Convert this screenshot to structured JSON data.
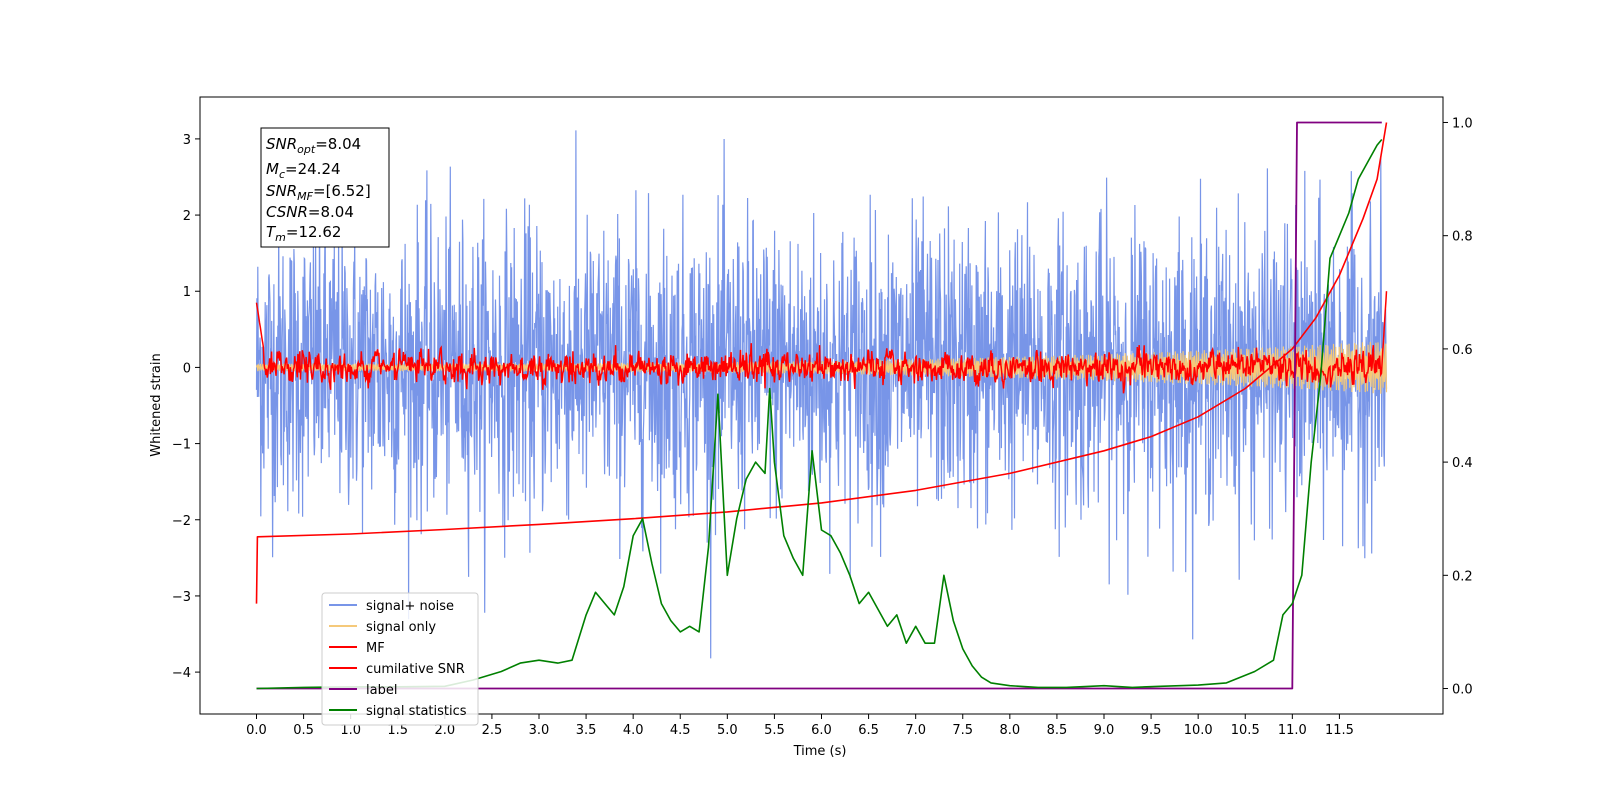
{
  "chart_data": {
    "type": "line",
    "xlabel": "Time (s)",
    "ylabel": "Whitened strain",
    "xlim": [
      -0.6,
      12.6
    ],
    "ylim": [
      -4.55,
      3.55
    ],
    "y2lim": [
      -0.045,
      1.045
    ],
    "grid": false,
    "legend_position": "lower-left",
    "x_ticks": [
      "0.0",
      "0.5",
      "1.0",
      "1.5",
      "2.0",
      "2.5",
      "3.0",
      "3.5",
      "4.0",
      "4.5",
      "5.0",
      "5.5",
      "6.0",
      "6.5",
      "7.0",
      "7.5",
      "8.0",
      "8.5",
      "9.0",
      "9.5",
      "10.0",
      "10.5",
      "11.0",
      "11.5"
    ],
    "y_ticks": [
      "3",
      "2",
      "1",
      "0",
      "−1",
      "−2",
      "−3",
      "−4"
    ],
    "y2_ticks": [
      "0.0",
      "0.2",
      "0.4",
      "0.6",
      "0.8",
      "1.0"
    ],
    "annotation": {
      "snr_opt": "=8.04",
      "mc": "=24.24",
      "snr_mf": "=[6.52]",
      "csnr": "=8.04",
      "tm": "=12.62"
    },
    "series": [
      {
        "name": "signal+ noise",
        "color": "#7895e8",
        "axis": "left",
        "x_range": [
          0,
          12.0
        ],
        "approx_envelope": [
          -2.8,
          2.8
        ],
        "note_values": "high-frequency noise, approx standard deviation 1.0"
      },
      {
        "name": "signal only",
        "color": "#f5c97a",
        "axis": "left",
        "x_range": [
          0,
          12.0
        ],
        "amplitude_start": 0.05,
        "amplitude_end": 0.35
      },
      {
        "name": "MF",
        "color": "#ff0000",
        "axis": "left",
        "x_range": [
          0,
          12.0
        ],
        "start_value": 0.85,
        "mean": 0.0,
        "end_value": 1.0
      },
      {
        "name": "cumilative SNR",
        "color": "#ff0000",
        "axis": "right",
        "x": [
          0,
          0.01,
          1,
          2,
          3,
          4,
          5,
          6,
          7,
          8,
          9,
          9.5,
          10,
          10.5,
          11,
          11.25,
          11.5,
          11.75,
          11.9,
          12.0
        ],
        "y": [
          0.15,
          0.268,
          0.273,
          0.281,
          0.29,
          0.3,
          0.312,
          0.328,
          0.35,
          0.38,
          0.42,
          0.445,
          0.48,
          0.53,
          0.6,
          0.655,
          0.73,
          0.83,
          0.9,
          1.0
        ]
      },
      {
        "name": "label",
        "color": "#800080",
        "axis": "right",
        "x": [
          0,
          11.0,
          11.05,
          11.95
        ],
        "y": [
          0.0,
          0.0,
          1.0,
          1.0
        ]
      },
      {
        "name": "signal statistics",
        "color": "#008000",
        "axis": "right",
        "x": [
          0,
          0.5,
          1.0,
          1.5,
          2.0,
          2.3,
          2.6,
          2.8,
          3.0,
          3.2,
          3.35,
          3.5,
          3.6,
          3.7,
          3.8,
          3.9,
          4.0,
          4.1,
          4.2,
          4.3,
          4.4,
          4.5,
          4.6,
          4.7,
          4.8,
          4.9,
          5.0,
          5.1,
          5.2,
          5.3,
          5.4,
          5.45,
          5.5,
          5.6,
          5.7,
          5.8,
          5.9,
          6.0,
          6.1,
          6.2,
          6.3,
          6.4,
          6.5,
          6.6,
          6.7,
          6.8,
          6.9,
          7.0,
          7.1,
          7.2,
          7.3,
          7.4,
          7.5,
          7.6,
          7.7,
          7.8,
          8.0,
          8.3,
          8.6,
          9.0,
          9.3,
          9.6,
          10.0,
          10.3,
          10.6,
          10.8,
          10.9,
          11.0,
          11.1,
          11.2,
          11.3,
          11.4,
          11.5,
          11.6,
          11.7,
          11.8,
          11.9,
          11.95
        ],
        "y": [
          0.0,
          0.002,
          0.003,
          0.003,
          0.004,
          0.015,
          0.03,
          0.045,
          0.05,
          0.045,
          0.05,
          0.13,
          0.17,
          0.15,
          0.13,
          0.18,
          0.27,
          0.3,
          0.22,
          0.15,
          0.12,
          0.1,
          0.11,
          0.1,
          0.25,
          0.52,
          0.2,
          0.3,
          0.37,
          0.4,
          0.38,
          0.53,
          0.4,
          0.27,
          0.23,
          0.2,
          0.42,
          0.28,
          0.27,
          0.24,
          0.2,
          0.15,
          0.17,
          0.14,
          0.11,
          0.13,
          0.08,
          0.11,
          0.08,
          0.08,
          0.2,
          0.12,
          0.07,
          0.04,
          0.02,
          0.01,
          0.005,
          0.002,
          0.002,
          0.005,
          0.002,
          0.004,
          0.006,
          0.01,
          0.03,
          0.05,
          0.13,
          0.15,
          0.2,
          0.4,
          0.55,
          0.76,
          0.8,
          0.84,
          0.9,
          0.93,
          0.96,
          0.97
        ]
      }
    ]
  }
}
